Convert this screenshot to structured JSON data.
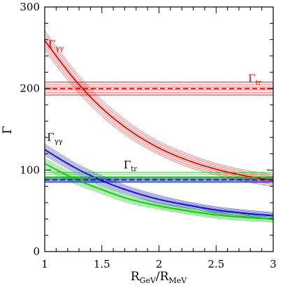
{
  "chart_data": {
    "type": "line",
    "title": "",
    "xlabel": {
      "main": "R",
      "sub1": "GeV",
      "sep": "/R",
      "sub2": "MeV"
    },
    "ylabel": "Γ",
    "xlim": [
      1,
      3
    ],
    "ylim": [
      0,
      300
    ],
    "x_ticks": [
      "1",
      "1.5",
      "2",
      "2.5",
      "3"
    ],
    "y_ticks": [
      "0",
      "100",
      "200",
      "300"
    ],
    "grid": false,
    "colors": {
      "red": "#e00000",
      "blue": "#0000d0",
      "green": "#00c800"
    },
    "annotations": [
      {
        "text": "Γ",
        "sub": "γγ",
        "color": "red",
        "at": [
          1.03,
          250
        ]
      },
      {
        "text": "Γ",
        "sub": "tr",
        "color": "red",
        "at": [
          2.78,
          208
        ]
      },
      {
        "text": "Γ",
        "sub": "γγ",
        "color": "black",
        "at": [
          1.02,
          136
        ]
      },
      {
        "text": "Γ",
        "sub": "tr",
        "color": "black",
        "at": [
          1.69,
          102
        ]
      }
    ],
    "series": [
      {
        "kind": "curve",
        "color": "red",
        "x": [
          1.0,
          1.25,
          1.5,
          1.75,
          2.0,
          2.25,
          2.5,
          2.75,
          3.0
        ],
        "y": [
          259,
          213,
          176,
          148,
          127,
          112,
          101,
          93,
          87
        ],
        "band": [
          12,
          11,
          10,
          9,
          8,
          8,
          7,
          7,
          7
        ]
      },
      {
        "kind": "curve",
        "color": "blue",
        "x": [
          1.0,
          1.25,
          1.5,
          1.75,
          2.0,
          2.25,
          2.5,
          2.75,
          3.0
        ],
        "y": [
          125,
          104,
          87,
          74,
          64,
          57,
          51,
          47,
          44
        ],
        "band": [
          7,
          6,
          6,
          5,
          5,
          4,
          4,
          4,
          4
        ]
      },
      {
        "kind": "curve",
        "color": "green",
        "x": [
          1.0,
          1.25,
          1.5,
          1.75,
          2.0,
          2.25,
          2.5,
          2.75,
          3.0
        ],
        "y": [
          108,
          90,
          76,
          64,
          56,
          50,
          45,
          42,
          40
        ],
        "band": [
          6,
          6,
          5,
          5,
          4,
          4,
          4,
          4,
          4
        ]
      },
      {
        "kind": "hline",
        "color": "red",
        "y": 200,
        "band": 8
      },
      {
        "kind": "hline",
        "color": "green",
        "y": 91,
        "band": 6
      },
      {
        "kind": "hline",
        "color": "blue",
        "y": 88,
        "band": 3
      }
    ]
  }
}
